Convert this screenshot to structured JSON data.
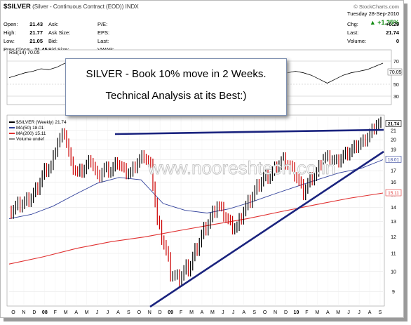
{
  "header": {
    "symbol": "$SILVER",
    "description": "(Silver - Continuous Contract (EOD))",
    "exchange": "INDX",
    "brand": "© StockCharts.com",
    "date": "Tuesday  28-Sep-2010",
    "change_pct": "▲ +1.35%",
    "stats": {
      "open_label": "Open:",
      "open": "21.43",
      "high_label": "High:",
      "high": "21.77",
      "low_label": "Low:",
      "low": "21.05",
      "prev_label": "Prev Close:",
      "prev": "21.45",
      "ask_label": "Ask:",
      "ask_size_label": "Ask Size:",
      "bid_label": "Bid:",
      "bid_size_label": "Bid Size:",
      "pe_label": "P/E:",
      "eps_label": "EPS:",
      "last_label": "Last:",
      "vwap_label": "VWAP:",
      "chg_label": "Chg:",
      "chg": "+0.29",
      "last2_label": "Last:",
      "last": "21.74",
      "volume_label": "Volume:",
      "volume": "0"
    }
  },
  "rsi": {
    "label": "RSI(14) 70.05",
    "value_badge": "70.05",
    "levels": [
      70,
      50,
      30
    ]
  },
  "legend": {
    "price": "$SILVER (Weekly) 21.74",
    "ma50": "MA(50) 18.01",
    "ma200": "MA(200) 15.11",
    "volume": "Volume undef"
  },
  "annotation": {
    "line1": "SILVER - Book 10% move in 2 Weeks.",
    "line2": "Technical Analysis at its Best:)"
  },
  "watermark": "www.nooreshtech.co.in",
  "colors": {
    "price": "#000000",
    "down_bar": "#cc0000",
    "ma50": "#2f3f9a",
    "ma200": "#e03030",
    "trendline": "#1a237e",
    "rsi": "#000000"
  },
  "chart_data": {
    "type": "line",
    "title": "$SILVER (Weekly) 21.74",
    "y_scale": "log",
    "y_ticks": [
      9,
      10,
      11,
      12,
      13,
      14,
      15,
      16,
      17,
      18,
      19,
      20,
      21
    ],
    "x_ticks": [
      "O",
      "N",
      "D",
      "08",
      "F",
      "M",
      "A",
      "M",
      "J",
      "J",
      "A",
      "S",
      "O",
      "N",
      "D",
      "09",
      "F",
      "M",
      "A",
      "M",
      "J",
      "J",
      "A",
      "S",
      "O",
      "N",
      "D",
      "10",
      "F",
      "M",
      "A",
      "M",
      "J",
      "J",
      "A",
      "S"
    ],
    "price_labels": [
      "21.74",
      "18.01",
      "15.11"
    ],
    "series": [
      {
        "name": "$SILVER (Weekly) 21.74",
        "values": [
          13.8,
          14.2,
          14.4,
          14.8,
          15.6,
          17.0,
          17.4,
          19.8,
          20.8,
          17.6,
          16.8,
          17.2,
          18.0,
          16.4,
          17.2,
          17.0,
          17.8,
          17.0,
          16.8,
          17.8,
          18.4,
          17.4,
          13.0,
          11.6,
          10.0,
          9.6,
          10.0,
          10.4,
          11.4,
          12.4,
          13.2,
          14.2,
          13.6,
          12.8,
          12.6,
          13.8,
          14.6,
          15.6,
          16.4,
          16.6,
          17.4,
          18.0,
          17.4,
          16.4,
          15.2,
          16.2,
          16.8,
          18.2,
          18.2,
          17.8,
          18.4,
          18.8,
          19.4,
          19.8,
          20.6,
          21.74
        ]
      },
      {
        "name": "MA(50) 18.01",
        "values": [
          13.2,
          13.5,
          14.1,
          15.0,
          15.9,
          16.4,
          16.2,
          14.3,
          13.8,
          13.6,
          13.9,
          14.4,
          15.0,
          15.6,
          16.2,
          16.8,
          17.2,
          18.01
        ]
      },
      {
        "name": "MA(200) 15.11",
        "values": [
          10.4,
          10.8,
          11.3,
          11.7,
          12.0,
          12.4,
          12.8,
          13.2,
          13.7,
          14.2,
          14.7,
          15.11
        ]
      }
    ],
    "rsi_values": [
      52,
      55,
      58,
      60,
      63,
      62,
      65,
      70,
      72,
      63,
      56,
      52,
      50,
      55,
      58,
      53,
      48,
      50,
      52,
      56,
      50,
      40,
      33,
      36,
      38,
      42,
      48,
      52,
      56,
      58,
      55,
      50,
      48,
      52,
      56,
      58,
      60,
      58,
      55,
      50,
      45,
      50,
      55,
      58,
      60,
      62,
      66,
      70.05
    ]
  }
}
